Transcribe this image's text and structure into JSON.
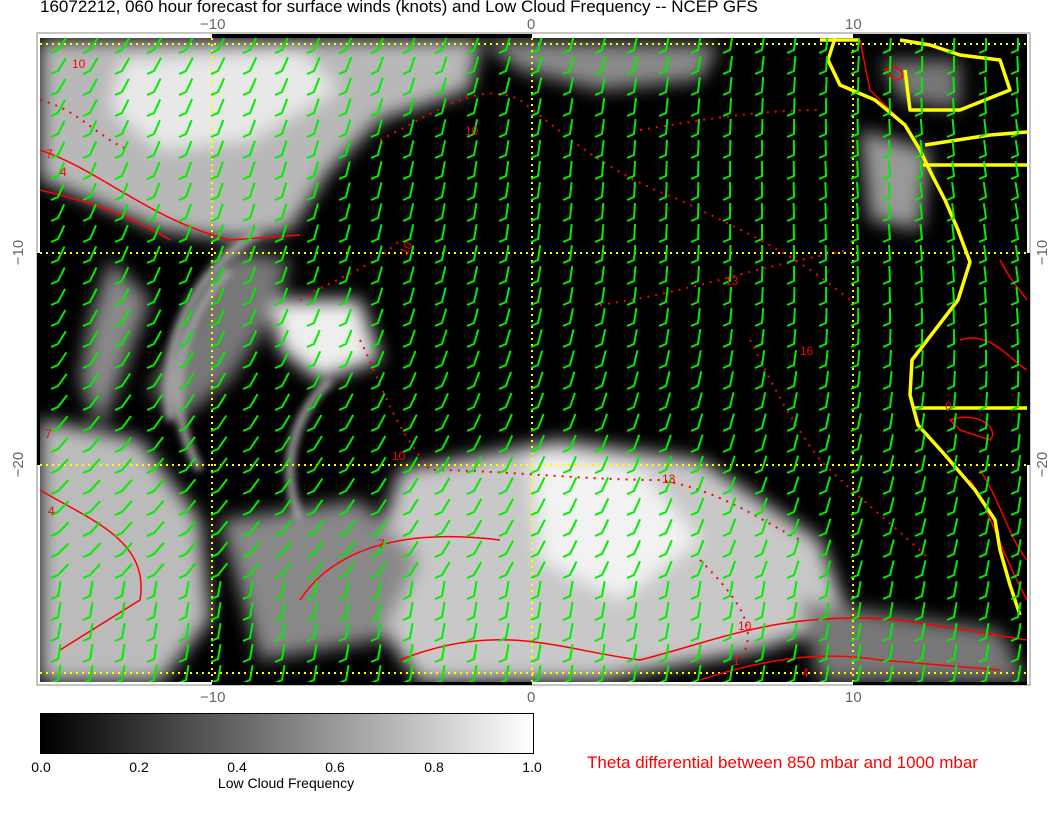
{
  "title": "16072212, 060 hour forecast for surface winds (knots) and Low Cloud Frequency -- NCEP GFS",
  "axes": {
    "lon_ticks": [
      "−10",
      "0",
      "10"
    ],
    "lat_ticks": [
      "−10",
      "−20"
    ]
  },
  "colorbar": {
    "label": "Low Cloud Frequency",
    "ticks": [
      "0.0",
      "0.2",
      "0.4",
      "0.6",
      "0.8",
      "1.0"
    ],
    "colormap": [
      "#000000",
      "#ffffff"
    ]
  },
  "contours": {
    "legend": "Theta differential between 850 mbar and 1000 mbar",
    "color": "#ff0000",
    "labels": [
      "10",
      "7",
      "4",
      "10",
      "10",
      "13",
      "16",
      "10",
      "13",
      "7",
      "4",
      "10",
      "1",
      "4",
      "0",
      "7"
    ]
  },
  "colors": {
    "wind_barbs": "#00ee00",
    "coastline": "#ffff00",
    "gridlines": "#ffff00",
    "contours": "#ff0000"
  }
}
